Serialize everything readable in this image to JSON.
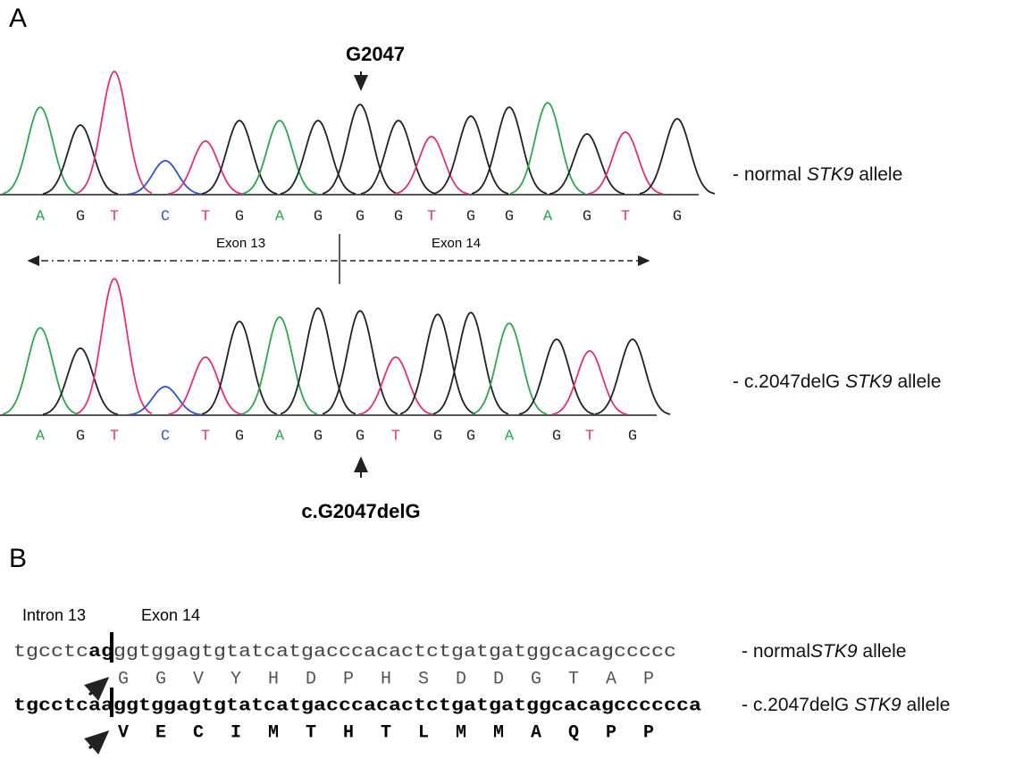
{
  "panel_a": {
    "label": "A",
    "marker": "G2047",
    "base_colors": {
      "A": "#2fa54f",
      "G": "#222222",
      "T": "#e0307c",
      "C": "#2f52c8"
    },
    "normal_bases": [
      "A",
      "G",
      "T",
      "C",
      "T",
      "G",
      "A",
      "G",
      "G",
      "G",
      "T",
      "G",
      "G",
      "A",
      "G",
      "T",
      "G"
    ],
    "exon_left": "Exon 13",
    "exon_right": "Exon 14",
    "normal_label": {
      "prefix": "- normal ",
      "gene": "STK9",
      "suffix": " allele"
    },
    "mutant_bases": [
      "A",
      "G",
      "T",
      "C",
      "T",
      "G",
      "A",
      "G",
      "G",
      "T",
      "G",
      "G",
      "A",
      "G",
      "T",
      "G"
    ],
    "mutation": "c.G2047delG",
    "mutant_label": {
      "prefix": "- c.2047delG ",
      "gene": "STK9",
      "suffix": " allele"
    }
  },
  "panel_b": {
    "label": "B",
    "intron": "Intron 13",
    "exon": "Exon 14",
    "normal_seq": {
      "head": "tgcctc",
      "splice": "ag",
      "tail": "ggtggagtgtatcatgacccacactctgatgatggcacagccccc"
    },
    "normal_aa": [
      "G",
      "G",
      "V",
      "Y",
      "H",
      "D",
      "P",
      "H",
      "S",
      "D",
      "D",
      "G",
      "T",
      "A",
      "P"
    ],
    "normal_label": {
      "prefix": "- normal",
      "gene": "STK9",
      "suffix": " allele"
    },
    "mutant_seq": "tgcctcaaggtggagtgtatcatgacccacactctgatgatggcacagcccccca",
    "mutant_aa": [
      "V",
      "E",
      "C",
      "I",
      "M",
      "T",
      "H",
      "T",
      "L",
      "M",
      "M",
      "A",
      "Q",
      "P",
      "P"
    ],
    "mutant_label": {
      "prefix": "- c.2047delG ",
      "gene": "STK9",
      "suffix": " allele"
    }
  }
}
